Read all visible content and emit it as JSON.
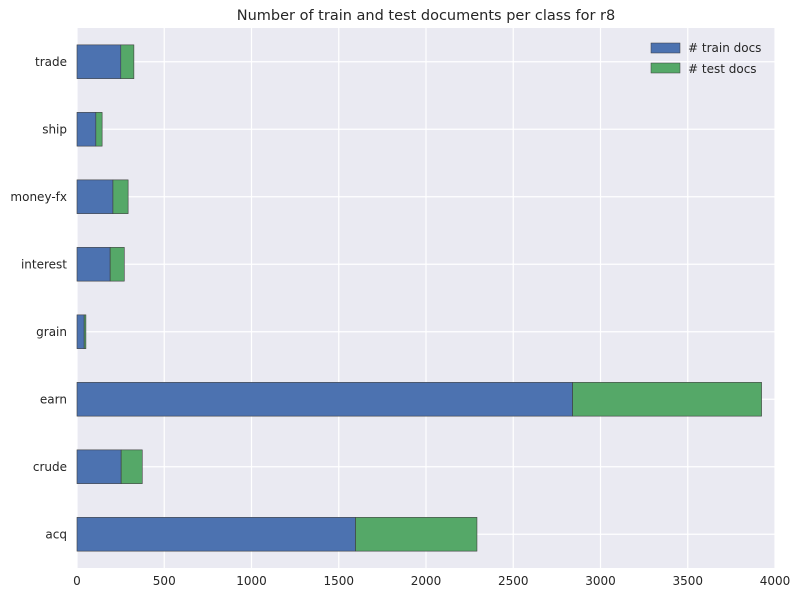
{
  "chart_data": {
    "type": "bar",
    "orientation": "horizontal",
    "stacked": true,
    "title": "Number of train and test documents per class for r8",
    "xlabel": "",
    "ylabel": "",
    "xlim": [
      0,
      4000
    ],
    "xticks": [
      0,
      500,
      1000,
      1500,
      2000,
      2500,
      3000,
      3500,
      4000
    ],
    "grid": true,
    "legend_position": "top-right",
    "categories": [
      "acq",
      "crude",
      "earn",
      "grain",
      "interest",
      "money-fx",
      "ship",
      "trade"
    ],
    "series": [
      {
        "name": "# train docs",
        "color": "#4c72b0",
        "values": [
          1596,
          253,
          2840,
          41,
          190,
          206,
          108,
          251
        ]
      },
      {
        "name": "# test docs",
        "color": "#55a868",
        "values": [
          696,
          121,
          1083,
          10,
          81,
          87,
          36,
          75
        ]
      }
    ]
  }
}
